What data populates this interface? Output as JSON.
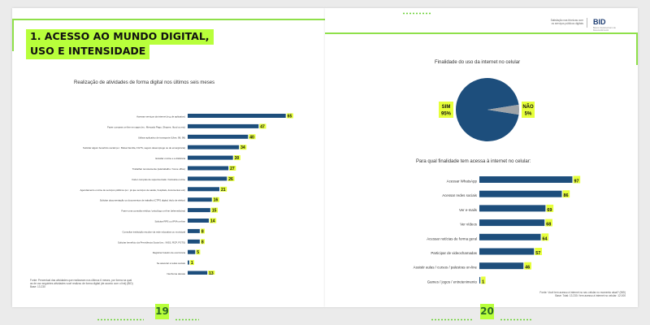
{
  "left_page": {
    "section_title_line1": "1. ACESSO AO MUNDO DIGITAL,",
    "section_title_line2": "USO E INTENSIDADE",
    "page_number": "19",
    "footnote_line1": "Fonte: Percentual das atividades que realizaram nos últimos 6 meses, por forma na qual",
    "footnote_line2": "as de uso seguintes atividades você realizou de forma digital (de acordo com o link) (BID)",
    "footnote_line3": "Base: 13.230"
  },
  "right_page": {
    "header_line1": "Satisfação nas têcnicas com",
    "header_line2": "os serviços públicos digitais",
    "logo": "BID",
    "logo_sub": "Banco Interamericano de Desenvolvimento",
    "page_number": "20",
    "footnote_line1": "Fonte: Você tem acesso à internet no seu celular no momento atual? (BID)",
    "footnote_line2": "Base: Total: 13.230 / tem acesso à internet no celular: 12.000"
  },
  "chart_data": [
    {
      "type": "bar",
      "orientation": "horizontal",
      "title": "Realização de atividades de forma digital nos últimos seis meses",
      "categories": [
        "Acessar serviços da internet (e.g.de aplicativo)",
        "Fazer compras on-line em apps (ex.: Mercado Pago, Shopee, Ifood ou etc)",
        "Utilizar aplicativo de transporte (Uber, 99, 99)",
        "Solicitar algum benefício social (ex.: Bolsa Família, FGTS, seguro desemprego ou de emergência)",
        "Estudar on-line e a distância",
        "Trabalhar remotamente (teletrabalho / home office)",
        "Fazer compras de supermercado / farmácia on-line",
        "Agendamento on-line de serviços públicos (ex.: já que serviços de saúde, hospitais, documentos etc)",
        "Solicitar documentação ou documentos de trabalho (CTPS digital, título de eleitor)",
        "Fazer uma consulta médica / psicólogo on-line (telemedicina)",
        "Solicitar RPS ou IPVA on-line",
        "Consultar instituição escolar via rede educativa ou municipal",
        "Solicitar benefício da Previdência Social (ex.: INSS, RCP, FGTS)",
        "Registrar boletim de ocorrência",
        "Se associar a redes sociais",
        "Nenhuma dessas"
      ],
      "values": [
        65,
        47,
        40,
        34,
        30,
        27,
        26,
        21,
        16,
        15,
        14,
        8,
        8,
        5,
        1,
        13
      ],
      "xlim": [
        0,
        70
      ],
      "bar_color": "#1d4e7c",
      "label_bg": "#e6ff3a"
    },
    {
      "type": "pie",
      "title": "Finalidade do uso da internet no celular",
      "slices": [
        {
          "label": "SIM",
          "value": 95,
          "display": "95%",
          "color": "#1d4e7c"
        },
        {
          "label": "NÃO",
          "value": 5,
          "display": "5%",
          "color": "#9ea3a8"
        }
      ],
      "label_bg": "#e6ff3a"
    },
    {
      "type": "bar",
      "orientation": "horizontal",
      "title": "Para qual finalidade tem acessa à internet no celular:",
      "categories": [
        "Acessar WhatsApp",
        "Acessar redes sociais",
        "Ver e-mails",
        "Ver vídeos",
        "Acessar notícias de forma geral",
        "Participar de videochamadas",
        "Assistir aulas / cursos / palestras on-line",
        "Games / jogos / entretenimento"
      ],
      "values": [
        97,
        86,
        69,
        68,
        64,
        57,
        46,
        1
      ],
      "xlim": [
        0,
        100
      ],
      "bar_color": "#1d4e7c",
      "label_bg": "#e6ff3a"
    }
  ]
}
